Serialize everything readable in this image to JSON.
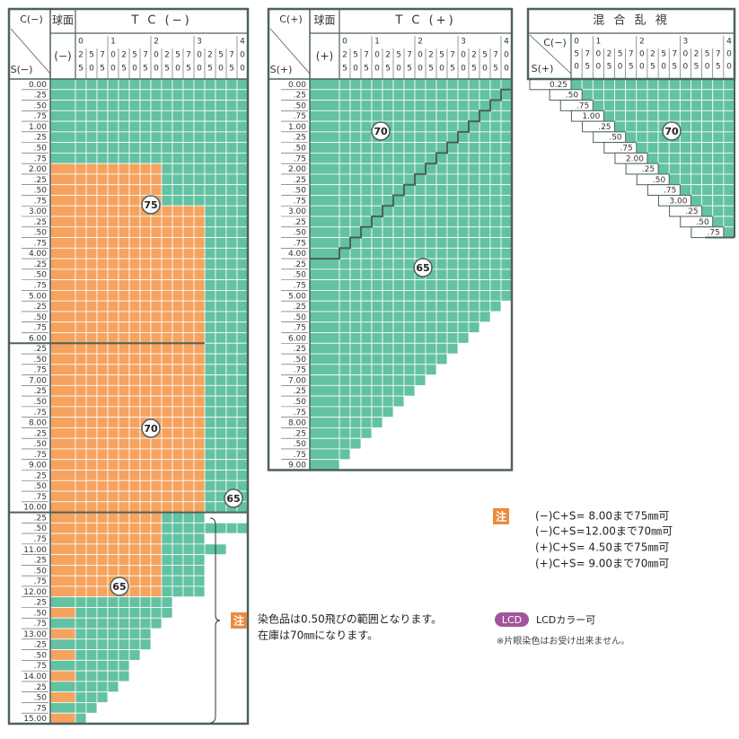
{
  "tables": [
    {
      "corner_top": "C(−)",
      "corner_bottom": "S(−)",
      "sphere_header": "球面",
      "title": "T C (−)",
      "sphere_sign": "(−)",
      "columns": [
        [
          "0",
          "2",
          "5"
        ],
        [
          "5",
          "0"
        ],
        [
          "7",
          "5"
        ],
        [
          "1",
          "0",
          "0"
        ],
        [
          "2",
          "5"
        ],
        [
          "5",
          "0"
        ],
        [
          "7",
          "5"
        ],
        [
          "2",
          "0",
          "0"
        ],
        [
          "2",
          "5"
        ],
        [
          "5",
          "0"
        ],
        [
          "7",
          "5"
        ],
        [
          "3",
          "0",
          "0"
        ],
        [
          "2",
          "5"
        ],
        [
          "5",
          "0"
        ],
        [
          "7",
          "5"
        ],
        [
          "4",
          "0",
          "0"
        ]
      ],
      "rows": [
        "0.00",
        ".25",
        ".50",
        ".75",
        "1.00",
        ".25",
        ".50",
        ".75",
        "2.00",
        ".25",
        ".50",
        ".75",
        "3.00",
        ".25",
        ".50",
        ".75",
        "4.00",
        ".25",
        ".50",
        ".75",
        "5.00",
        ".25",
        ".50",
        ".75",
        "6.00",
        ".25",
        ".50",
        ".75",
        "7.00",
        ".25",
        ".50",
        ".75",
        "8.00",
        ".25",
        ".50",
        ".75",
        "9.00",
        ".25",
        ".50",
        ".75",
        "10.00",
        ".25",
        ".50",
        ".75",
        "11.00",
        ".25",
        ".50",
        ".75",
        "12.00",
        ".25",
        ".50",
        ".75",
        "13.00",
        ".25",
        ".50",
        ".75",
        "14.00",
        ".25",
        ".50",
        ".75",
        "15.00"
      ],
      "cells": [
        "TTTTTTTTTTTTTTTTT",
        "TTTTTTTTTTTTTTTTT",
        "TTTTTTTTTTTTTTTTT",
        "TTTTTTTTTTTTTTTTT",
        "TTTTTTTTTTTTTTTTT",
        "TTTTTTTTTTTTTTTTT",
        "TTTTTTTTTTTTTTTTT",
        "TTTTTTTTTTTTTTTTT",
        "OOOOOOOOOTTTTTTTT",
        "OOOOOOOOOTTTTTTTT",
        "OOOOOOOOOTTTTTTTT",
        "OOOOOOOOOTTTTTTTT",
        "OOOOOOOOOOOOOTTTT",
        "OOOOOOOOOOOOOTTTT",
        "OOOOOOOOOOOOOTTTT",
        "OOOOOOOOOOOOOTTTT",
        "OOOOOOOOOOOOOTTTT",
        "OOOOOOOOOOOOOTTTT",
        "OOOOOOOOOOOOOTTTT",
        "OOOOOOOOOOOOOTTTT",
        "OOOOOOOOOOOOOTTTT",
        "OOOOOOOOOOOOOTTTT",
        "OOOOOOOOOOOOOTTTT",
        "OOOOOOOOOOOOOTTTT",
        "OOOOOOOOOOOOOTTTT",
        "OOOOOOOOOOOOOTTTT",
        "OOOOOOOOOOOOOTTTT",
        "OOOOOOOOOOOOOTTTT",
        "OOOOOOOOOOOOOTTTT",
        "OOOOOOOOOOOOOTTTT",
        "OOOOOOOOOOOOOTTTT",
        "OOOOOOOOOOOOOTTTT",
        "OOOOOOOOOOOOOTTTT",
        "OOOOOOOOOOOOOTTTT",
        "OOOOOOOOOOOOOTTTT",
        "OOOOOOOOOOOOOTTTT",
        "OOOOOOOOOOOOOTTTT",
        "OOOOOOOOOOOOOTTTT",
        "OOOOOOOOOOOOOTTTT",
        "OOOOOOOOOOOOOTTTT",
        "OOOOOOOOOOOOOTTTT",
        "OOOOOOOOOTTTT....",
        "OOOOOOOOOTTTTTTTT",
        "OOOOOOOOOTTTT....",
        "OOOOOOOOOTTTTTT..",
        "OOOOOOOOOTTTT....",
        "OOOOOOOOOTTTT....",
        "OOOOOOOOOTTTT....",
        "OOOOOOOOOTTTT....",
        "TTTTTTTTTT.......",
        "OTTTTTTTTT.......",
        "TTTTTTTTT........",
        "OTTTTTTT.........",
        "TTTTTTTT.........",
        "OTTTTTT..........",
        "TTTTTT...........",
        "OTTTTT...........",
        "TTTTT............",
        "OTTT.............",
        "TTT..............",
        "OT..............."
      ],
      "regions": [
        75,
        70,
        65,
        65
      ]
    },
    {
      "corner_top": "C(+)",
      "corner_bottom": "S(+)",
      "sphere_header": "球面",
      "title": "T C (+)",
      "sphere_sign": "(+)",
      "columns": [
        [
          "0",
          "2",
          "5"
        ],
        [
          "5",
          "0"
        ],
        [
          "7",
          "5"
        ],
        [
          "1",
          "0",
          "0"
        ],
        [
          "2",
          "5"
        ],
        [
          "5",
          "0"
        ],
        [
          "7",
          "5"
        ],
        [
          "2",
          "0",
          "0"
        ],
        [
          "2",
          "5"
        ],
        [
          "5",
          "0"
        ],
        [
          "7",
          "5"
        ],
        [
          "3",
          "0",
          "0"
        ],
        [
          "2",
          "5"
        ],
        [
          "5",
          "0"
        ],
        [
          "7",
          "5"
        ],
        [
          "4",
          "0",
          "0"
        ]
      ],
      "rows": [
        "0.00",
        ".25",
        ".50",
        ".75",
        "1.00",
        ".25",
        ".50",
        ".75",
        "2.00",
        ".25",
        ".50",
        ".75",
        "3.00",
        ".25",
        ".50",
        ".75",
        "4.00",
        ".25",
        ".50",
        ".75",
        "5.00",
        ".25",
        ".50",
        ".75",
        "6.00",
        ".25",
        ".50",
        ".75",
        "7.00",
        ".25",
        ".50",
        ".75",
        "8.00",
        ".25",
        ".50",
        ".75",
        "9.00"
      ],
      "cells": [
        "TTTTTTTTTTTTTTTTT",
        "TTTTTTTTTTTTTTTTT",
        "TTTTTTTTTTTTTTTTT",
        "TTTTTTTTTTTTTTTTT",
        "TTTTTTTTTTTTTTTTT",
        "TTTTTTTTTTTTTTTTT",
        "TTTTTTTTTTTTTTTTT",
        "TTTTTTTTTTTTTTTTT",
        "TTTTTTTTTTTTTTTTT",
        "TTTTTTTTTTTTTTTTT",
        "TTTTTTTTTTTTTTTTT",
        "TTTTTTTTTTTTTTTTT",
        "TTTTTTTTTTTTTTTTT",
        "TTTTTTTTTTTTTTTTT",
        "TTTTTTTTTTTTTTTTT",
        "TTTTTTTTTTTTTTTTT",
        "TTTTTTTTTTTTTTTTT",
        "TTTTTTTTTTTTTTTTT",
        "TTTTTTTTTTTTTTTTT",
        "TTTTTTTTTTTTTTTTT",
        "TTTTTTTTTTTTTTTTT",
        "TTTTTTTTTTTTTTTT.",
        "TTTTTTTTTTTTTTT..",
        "TTTTTTTTTTTTTT...",
        "TTTTTTTTTTTTT....",
        "TTTTTTTTTTTT.....",
        "TTTTTTTTTTT......",
        "TTTTTTTTTT.......",
        "TTTTTTTTT........",
        "TTTTTTTT.........",
        "TTTTTTT..........",
        "TTTTTT...........",
        "TTTTT............",
        "TTTT.............",
        "TTT..............",
        "TT...............",
        "T................"
      ],
      "regions": [
        70,
        65
      ]
    },
    {
      "title": "混 合 乱 視",
      "corner_top": "C(−)",
      "corner_bottom": "S(+)",
      "columns": [
        [
          "0",
          "5",
          "0"
        ],
        [
          "7",
          "5"
        ],
        [
          "1",
          "0",
          "0"
        ],
        [
          "2",
          "5"
        ],
        [
          "5",
          "0"
        ],
        [
          "7",
          "5"
        ],
        [
          "2",
          "0",
          "0"
        ],
        [
          "2",
          "5"
        ],
        [
          "5",
          "0"
        ],
        [
          "7",
          "5"
        ],
        [
          "3",
          "0",
          "0"
        ],
        [
          "2",
          "5"
        ],
        [
          "5",
          "0"
        ],
        [
          "7",
          "5"
        ],
        [
          "4",
          "0",
          "0"
        ]
      ],
      "rows": [
        "0.25",
        ".50",
        ".75",
        "1.00",
        ".25",
        ".50",
        ".75",
        "2.00",
        ".25",
        ".50",
        ".75",
        "3.00",
        ".25",
        ".50",
        ".75"
      ],
      "regions": [
        70
      ]
    }
  ],
  "limits_note": {
    "mark": "注",
    "lines": [
      "(−)C+S= 8.00まで75㎜可",
      "(−)C+S=12.00まで70㎜可",
      "(+)C+S= 4.50まで75㎜可",
      "(+)C+S= 9.00まで70㎜可"
    ]
  },
  "dye_note": {
    "mark": "注",
    "lines": [
      "染色品は0.50飛びの範囲となります。",
      "在庫は70㎜になります。"
    ]
  },
  "lcd": {
    "badge": "LCD",
    "text": "LCDカラー可",
    "note": "※片眼染色はお受け出来ません。"
  }
}
